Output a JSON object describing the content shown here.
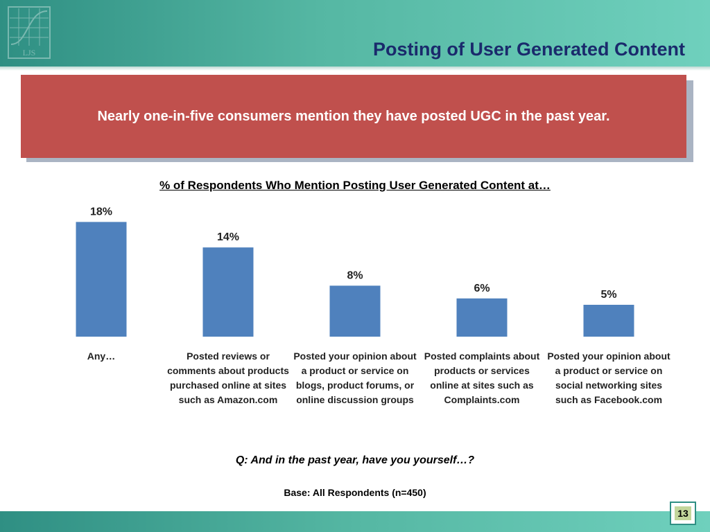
{
  "header": {
    "title": "Posting of User Generated Content",
    "logo_text": "LJS"
  },
  "callout": {
    "text": "Nearly one-in-five consumers mention they have posted UGC in the past year."
  },
  "chart_data": {
    "type": "bar",
    "title": "% of Respondents Who Mention Posting User Generated Content at…",
    "categories": [
      "Any…",
      "Posted reviews or comments about products purchased online at sites such as Amazon.com",
      "Posted your opinion about a product or service on blogs, product forums, or online discussion groups",
      "Posted complaints about products or services online at sites such as Complaints.com",
      "Posted your opinion about a product or service on social networking sites such as Facebook.com"
    ],
    "values": [
      18,
      14,
      8,
      6,
      5
    ],
    "value_labels": [
      "18%",
      "14%",
      "8%",
      "6%",
      "5%"
    ],
    "unit": "%",
    "bar_color": "#4f81bd",
    "grid": false,
    "legend": "none"
  },
  "footer": {
    "question": "Q: And in the past year, have you yourself…?",
    "base": "Base: All Respondents (n=450)",
    "page_number": "13"
  }
}
